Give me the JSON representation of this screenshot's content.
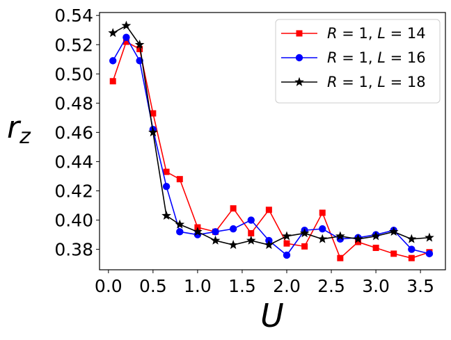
{
  "chart_data": {
    "type": "line",
    "title": "",
    "xlabel": "U",
    "ylabel": "r",
    "ylabel_subscript": "z",
    "xlim": [
      -0.1,
      3.78
    ],
    "ylim": [
      0.366,
      0.542
    ],
    "xticks": [
      0.0,
      0.5,
      1.0,
      1.5,
      2.0,
      2.5,
      3.0,
      3.5
    ],
    "xtick_labels": [
      "0.0",
      "0.5",
      "1.0",
      "1.5",
      "2.0",
      "2.5",
      "3.0",
      "3.5"
    ],
    "yticks": [
      0.38,
      0.4,
      0.42,
      0.44,
      0.46,
      0.48,
      0.5,
      0.52,
      0.54
    ],
    "ytick_labels": [
      "0.38",
      "0.40",
      "0.42",
      "0.44",
      "0.46",
      "0.48",
      "0.50",
      "0.52",
      "0.54"
    ],
    "grid": false,
    "legend_position": "upper-right",
    "x": [
      0.05,
      0.2,
      0.35,
      0.5,
      0.65,
      0.8,
      1.0,
      1.2,
      1.4,
      1.6,
      1.8,
      2.0,
      2.2,
      2.4,
      2.6,
      2.8,
      3.0,
      3.2,
      3.4,
      3.6
    ],
    "series": [
      {
        "name": "R = 1, L = 14",
        "legend_parts": [
          "R",
          " = 1, ",
          "L",
          " = 14"
        ],
        "color": "#ff0000",
        "marker": "square",
        "values": [
          0.495,
          0.522,
          0.517,
          0.473,
          0.433,
          0.428,
          0.395,
          0.392,
          0.408,
          0.391,
          0.407,
          0.384,
          0.382,
          0.405,
          0.374,
          0.385,
          0.381,
          0.377,
          0.374,
          0.378
        ]
      },
      {
        "name": "R = 1, L = 16",
        "legend_parts": [
          "R",
          " = 1, ",
          "L",
          " = 16"
        ],
        "color": "#0000ff",
        "marker": "circle",
        "values": [
          0.509,
          0.525,
          0.509,
          0.462,
          0.423,
          0.392,
          0.39,
          0.392,
          0.394,
          0.4,
          0.386,
          0.376,
          0.393,
          0.394,
          0.387,
          0.388,
          0.39,
          0.393,
          0.38,
          0.377
        ]
      },
      {
        "name": "R = 1, L = 18",
        "legend_parts": [
          "R",
          " = 1, ",
          "L",
          " = 18"
        ],
        "color": "#000000",
        "marker": "star",
        "values": [
          0.528,
          0.533,
          0.52,
          0.46,
          0.403,
          0.397,
          0.392,
          0.386,
          0.383,
          0.386,
          0.383,
          0.389,
          0.391,
          0.387,
          0.389,
          0.387,
          0.389,
          0.392,
          0.387,
          0.388
        ]
      }
    ]
  }
}
